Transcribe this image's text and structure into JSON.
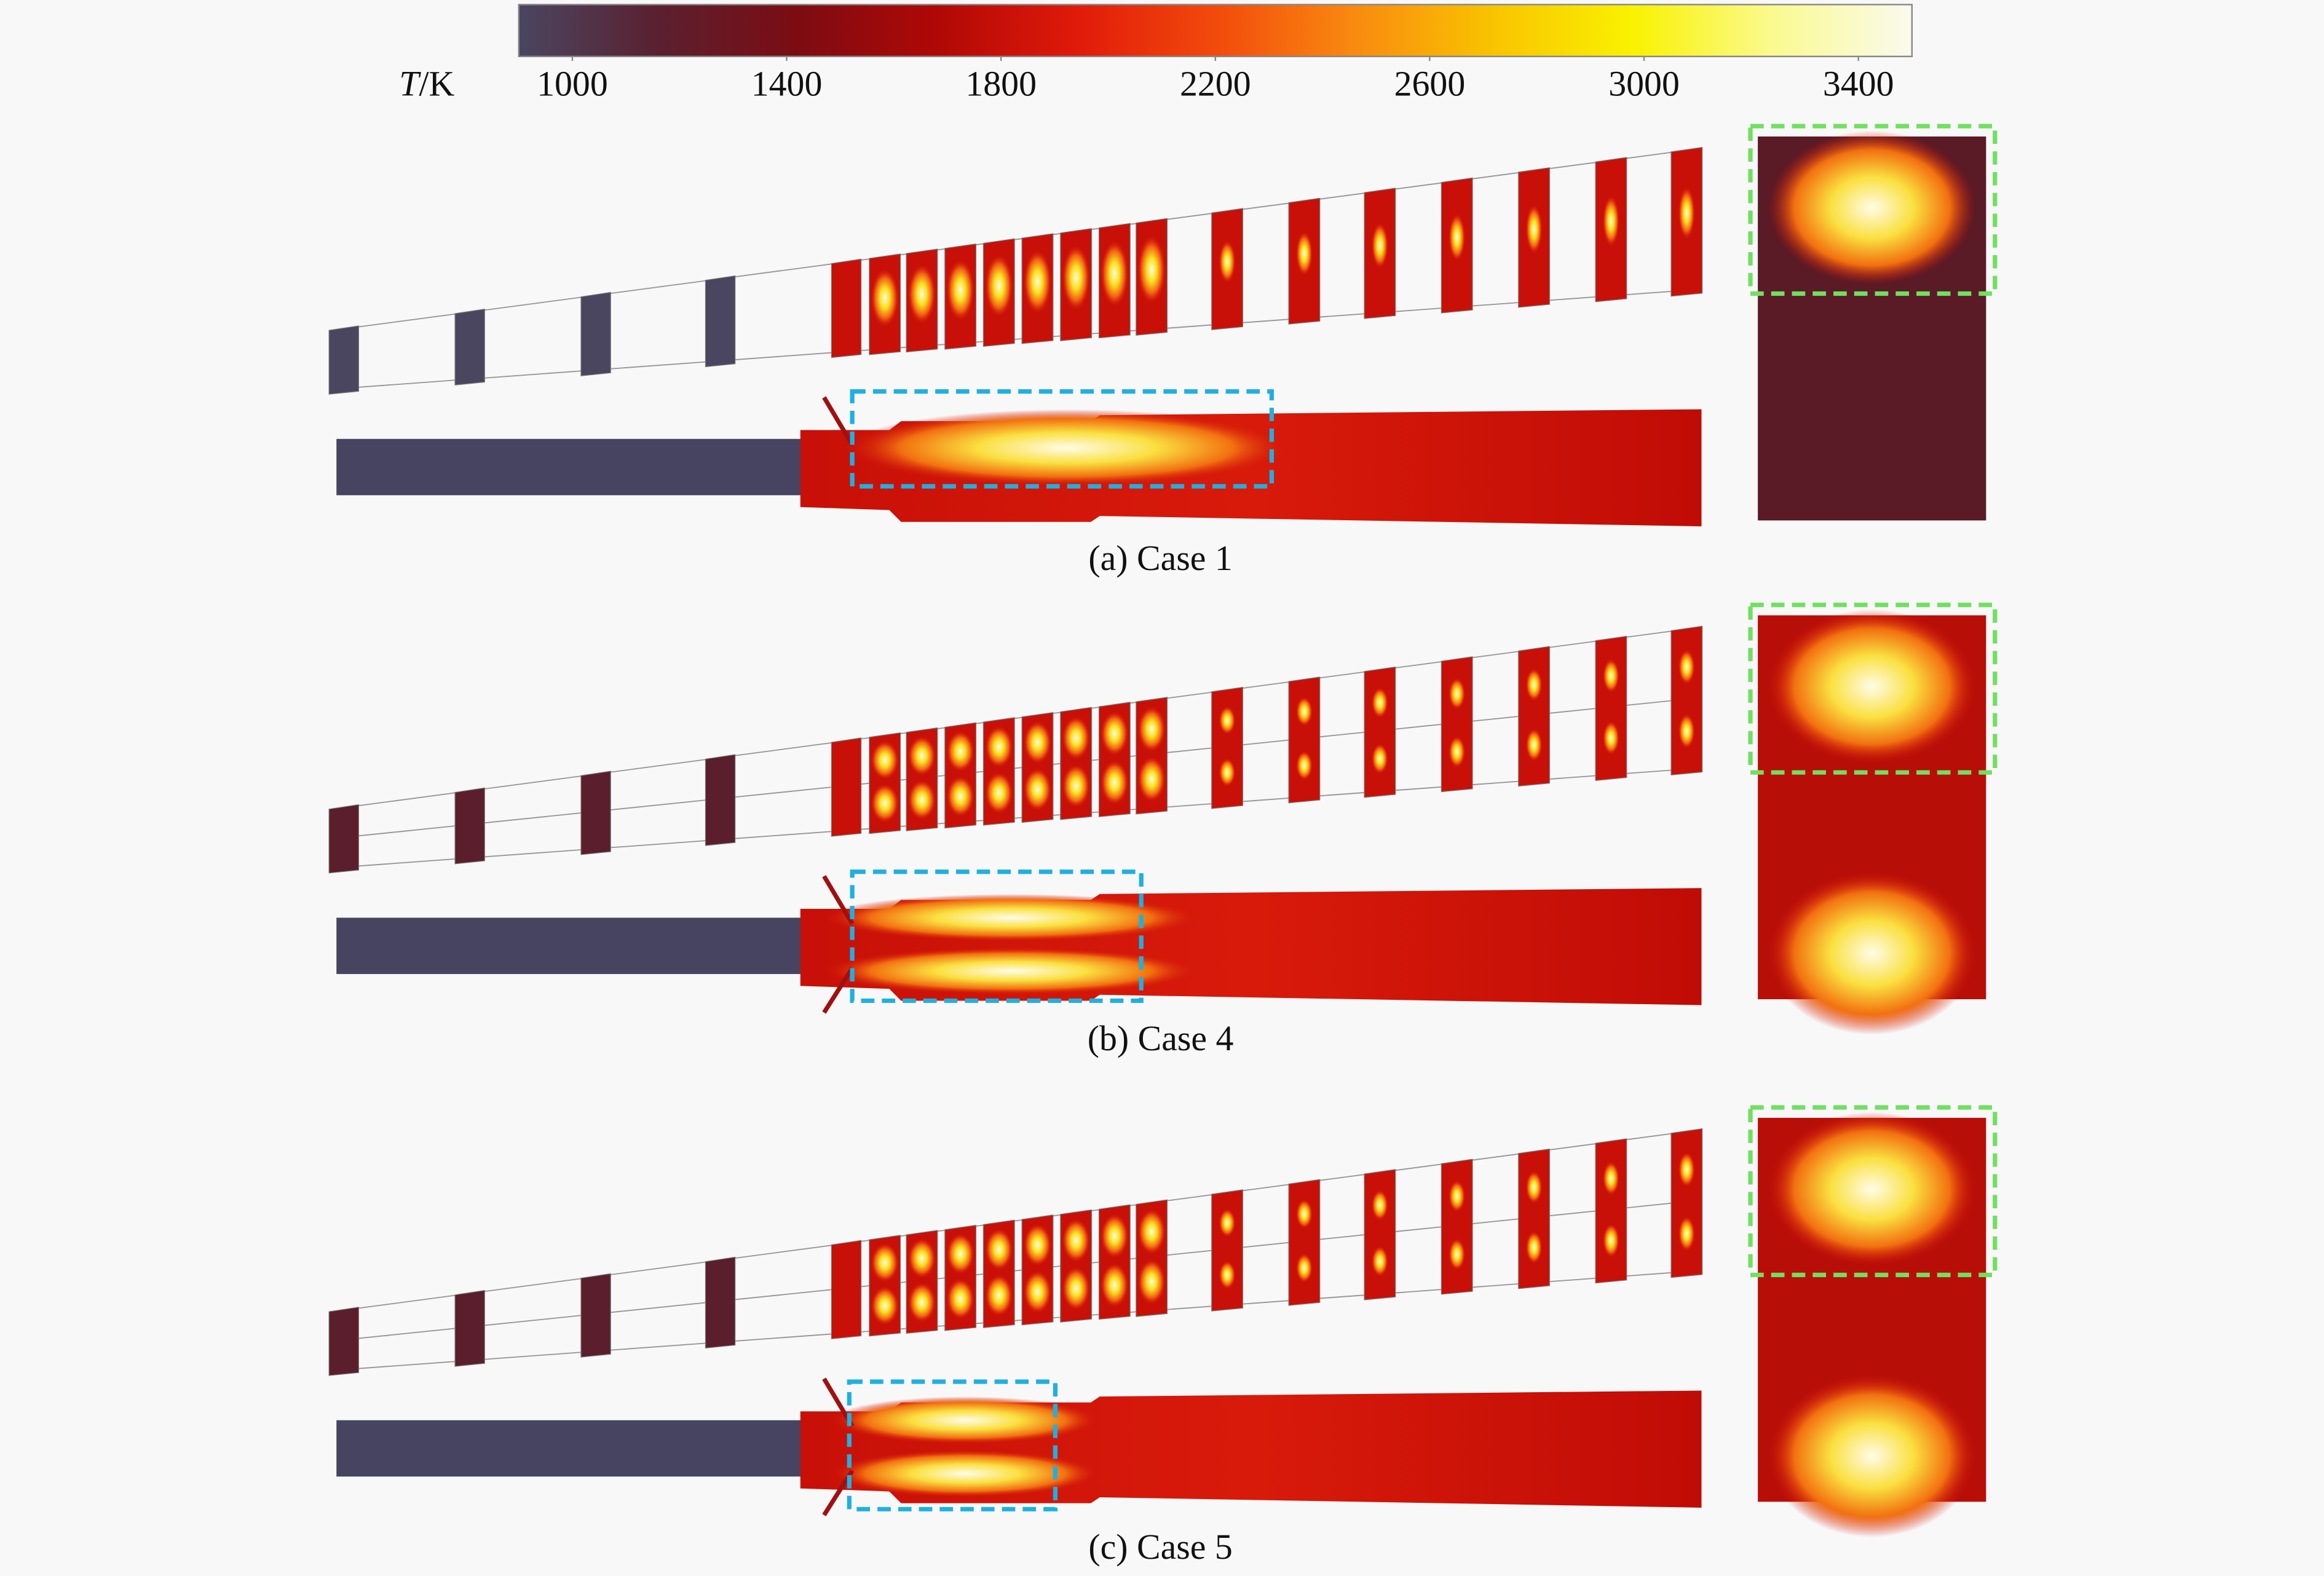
{
  "colorbar": {
    "label": {
      "symbol": "T",
      "unit": "/K"
    },
    "range": [
      900,
      3500
    ],
    "ticks": [
      1000,
      1400,
      1800,
      2200,
      2600,
      3000,
      3400
    ],
    "colors": [
      "#4a4660",
      "#5a2030",
      "#7c0c12",
      "#b00806",
      "#e01a0a",
      "#f24a0c",
      "#f98a10",
      "#f9c400",
      "#f9f200",
      "#fafa90",
      "#fafaee"
    ]
  },
  "panels": [
    {
      "caption": "(a) Case 1"
    },
    {
      "caption": "(b) Case 4"
    },
    {
      "caption": "(c) Case 5"
    }
  ]
}
